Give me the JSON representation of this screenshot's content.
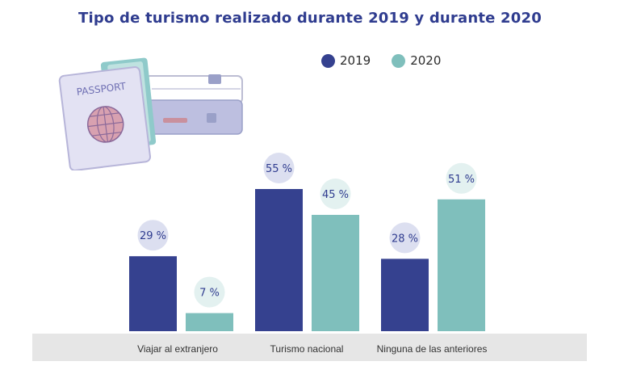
{
  "chart_data": {
    "type": "bar",
    "title": "Tipo de turismo realizado durante 2019 y durante 2020",
    "categories": [
      "Viajar al extranjero",
      "Turismo nacional",
      "Ninguna de las anteriores"
    ],
    "series": [
      {
        "name": "2019",
        "values": [
          29,
          55,
          28
        ],
        "labels": [
          "29 %",
          "55 %",
          "28 %"
        ],
        "color": "#35418f"
      },
      {
        "name": "2020",
        "values": [
          7,
          45,
          51
        ],
        "labels": [
          "7 %",
          "45 %",
          "51 %"
        ],
        "color": "#7fbfbc"
      }
    ],
    "ylim": [
      0,
      55
    ],
    "xlabel": "",
    "ylabel": ""
  },
  "illustration": {
    "passport_text": "PASSPORT"
  },
  "colors": {
    "title": "#2f3c8f",
    "bubble_2019": "#dcdff0",
    "bubble_2020": "#e3f1f0",
    "label_text": "#2f3c8f"
  }
}
